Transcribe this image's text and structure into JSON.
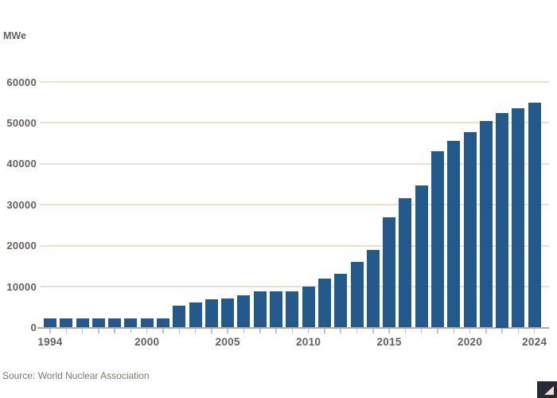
{
  "unit_label": "MWe",
  "footer": {
    "source": "Source: World Nuclear Association"
  },
  "colors": {
    "bar": "#24598c",
    "gridline": "#efdfd0",
    "zero_line": "#b3a89b",
    "axis_text": "#66605b",
    "source_text": "#7e776e",
    "logo_background": "#262a33",
    "logo_arrow": "#f2dfce",
    "background": "#ffffff"
  },
  "chart_data": {
    "type": "bar",
    "title": "",
    "ylabel": "MWe",
    "xlabel": "",
    "ylim": [
      0,
      60000
    ],
    "yticks": [
      0,
      10000,
      20000,
      30000,
      40000,
      50000,
      60000
    ],
    "grid": "horizontal",
    "legend": "none",
    "x": [
      1994,
      1995,
      1996,
      1997,
      1998,
      1999,
      2000,
      2001,
      2002,
      2003,
      2004,
      2005,
      2006,
      2007,
      2008,
      2009,
      2010,
      2011,
      2012,
      2013,
      2014,
      2015,
      2016,
      2017,
      2018,
      2019,
      2020,
      2021,
      2022,
      2023,
      2024
    ],
    "values": [
      2200,
      2200,
      2200,
      2200,
      2200,
      2200,
      2200,
      2200,
      5400,
      6200,
      6900,
      7100,
      7800,
      8800,
      8800,
      8800,
      10000,
      11900,
      13200,
      16100,
      19000,
      27000,
      31700,
      34800,
      43100,
      45600,
      47700,
      50400,
      52500,
      53500,
      54900
    ],
    "xtick_labels": [
      "1994",
      "2000",
      "2005",
      "2010",
      "2015",
      "2020",
      "2024"
    ]
  }
}
